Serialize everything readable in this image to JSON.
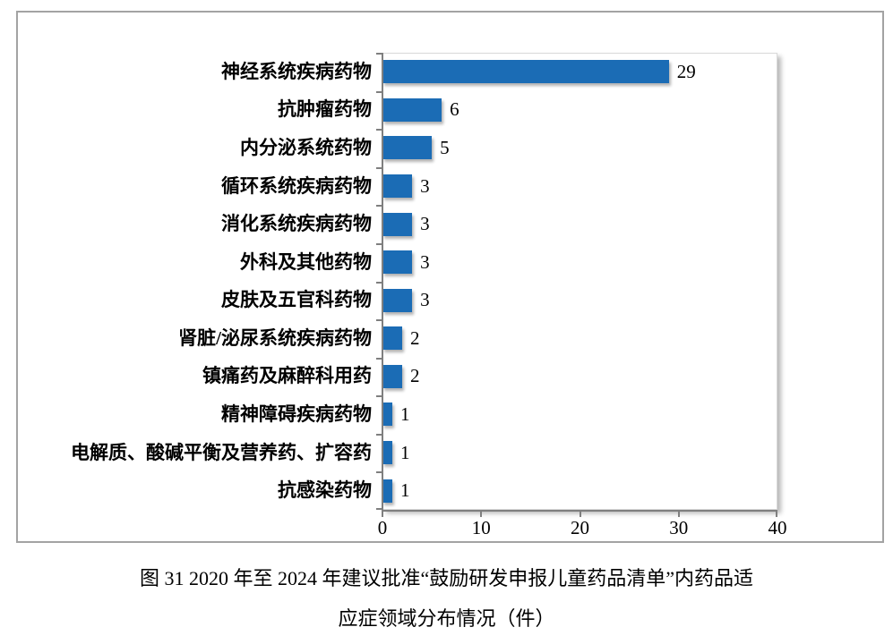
{
  "chart_data": {
    "type": "bar",
    "orientation": "horizontal",
    "title": "",
    "xlabel": "",
    "ylabel": "",
    "categories": [
      "神经系统疾病药物",
      "抗肿瘤药物",
      "内分泌系统药物",
      "循环系统疾病药物",
      "消化系统疾病药物",
      "外科及其他药物",
      "皮肤及五官科药物",
      "肾脏/泌尿系统疾病药物",
      "镇痛药及麻醉科用药",
      "精神障碍疾病药物",
      "电解质、酸碱平衡及营养药、扩容药",
      "抗感染药物"
    ],
    "values": [
      29,
      6,
      5,
      3,
      3,
      3,
      3,
      2,
      2,
      1,
      1,
      1
    ],
    "xlim": [
      0,
      40
    ],
    "x_ticks": [
      0,
      10,
      20,
      30,
      40
    ],
    "grid": false,
    "data_labels": true,
    "legend": "none",
    "bar_color": "#1b6cb5"
  },
  "caption": {
    "line1": "图 31  2020 年至 2024 年建议批准“鼓励研发申报儿童药品清单”内药品适",
    "line2": "应症领域分布情况（件）"
  }
}
